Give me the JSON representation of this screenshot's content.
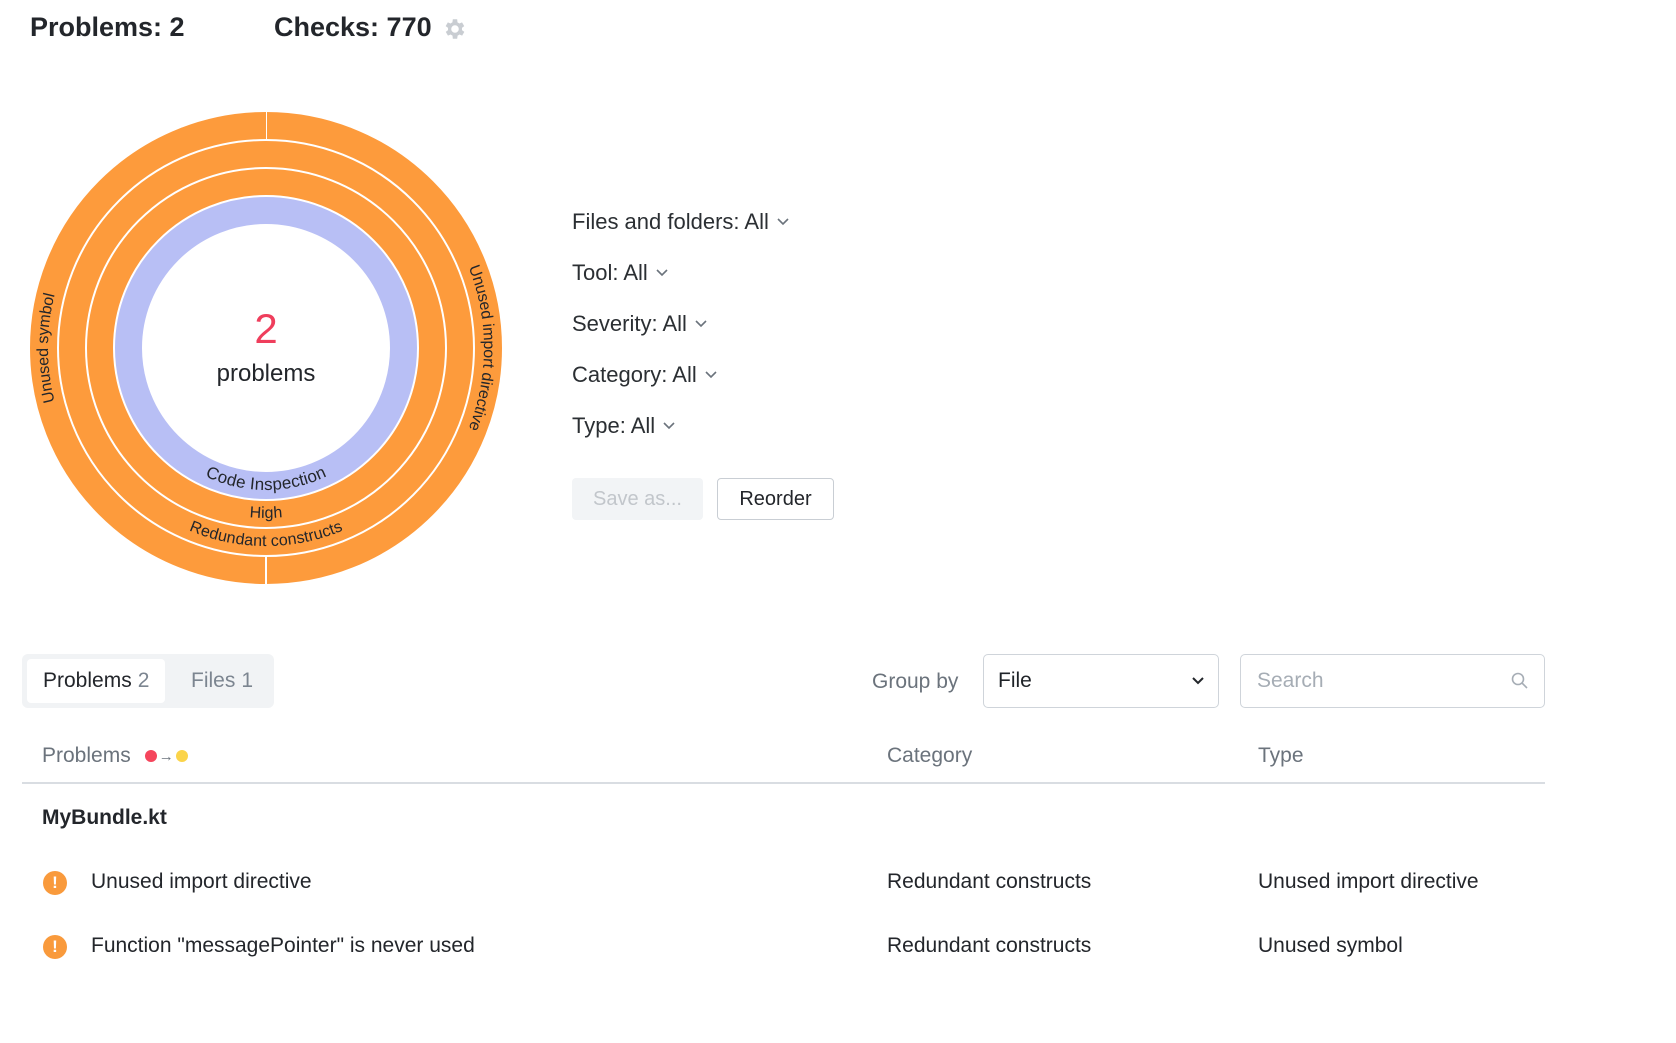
{
  "header": {
    "problems_label": "Problems: 2",
    "checks_label": "Checks: 770",
    "settings_icon": "gear-icon"
  },
  "donut": {
    "center_value": "2",
    "center_label": "problems",
    "colors": {
      "orange": "#fd9b3c",
      "lavender": "#b8bff5",
      "center_value": "#ef3e5c"
    },
    "rings": {
      "tool": [
        {
          "label": "Code Inspection",
          "count": 2
        }
      ],
      "severity": [
        {
          "label": "High",
          "count": 2
        }
      ],
      "category": [
        {
          "label": "Redundant constructs",
          "count": 2
        }
      ],
      "type": [
        {
          "label": "Unused import directive",
          "count": 1
        },
        {
          "label": "Unused symbol",
          "count": 1
        }
      ]
    }
  },
  "filters": [
    {
      "label": "Files and folders: All"
    },
    {
      "label": "Tool: All"
    },
    {
      "label": "Severity: All"
    },
    {
      "label": "Category: All"
    },
    {
      "label": "Type: All"
    }
  ],
  "actions": {
    "save_as": "Save as...",
    "reorder": "Reorder"
  },
  "tabs": [
    {
      "label": "Problems",
      "count": "2",
      "active": true
    },
    {
      "label": "Files",
      "count": "1",
      "active": false
    }
  ],
  "group_by": {
    "label": "Group by",
    "value": "File"
  },
  "search": {
    "placeholder": "Search",
    "value": ""
  },
  "table": {
    "columns": [
      "Problems",
      "Category",
      "Type"
    ],
    "sort_colors": {
      "from": "#f5455c",
      "to": "#fbd44a"
    },
    "groups": [
      {
        "file": "MyBundle.kt",
        "rows": [
          {
            "problem": "Unused import directive",
            "category": "Redundant constructs",
            "type": "Unused import directive"
          },
          {
            "problem": "Function \"messagePointer\" is never used",
            "category": "Redundant constructs",
            "type": "Unused symbol"
          }
        ]
      }
    ]
  }
}
